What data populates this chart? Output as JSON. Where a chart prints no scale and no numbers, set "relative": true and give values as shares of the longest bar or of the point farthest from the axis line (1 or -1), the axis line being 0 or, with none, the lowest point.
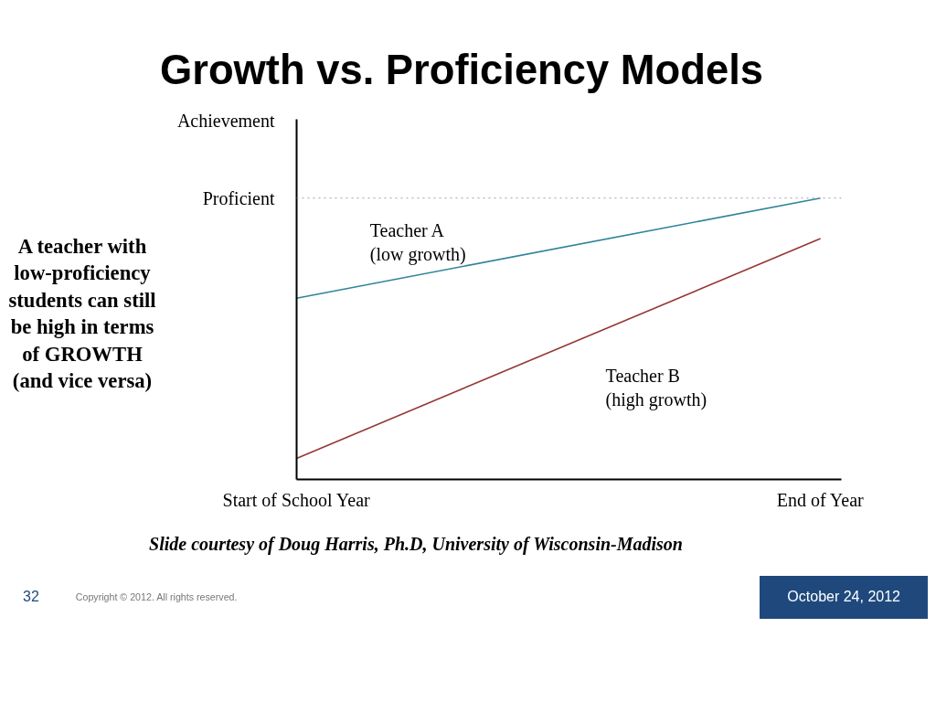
{
  "chart_data": {
    "type": "line",
    "title": "Growth vs. Proficiency Models",
    "ylabel": "Achievement",
    "relative": true,
    "categories": [
      "Start of School Year",
      "End of Year"
    ],
    "series": [
      {
        "name": "Teacher A\n(low growth)",
        "color": "#31849b",
        "values": [
          0.644,
          1.0
        ]
      },
      {
        "name": "Teacher B\n(high growth)",
        "color": "#953735",
        "values": [
          0.075,
          0.856
        ]
      }
    ],
    "ref_lines": [
      {
        "axis": "y",
        "value": 1.0,
        "label": "Proficient",
        "color": "#a0a0a0",
        "line_style": "dotted"
      }
    ],
    "annotations": [
      "A teacher with low-proficiency students can still be high in terms of GROWTH (and vice versa)",
      "Slide courtesy of Doug Harris, Ph.D, University of Wisconsin-Madison",
      "Copyright © 2012. All rights reserved.",
      "32",
      "October 24, 2012"
    ],
    "legend": false,
    "marker": "none",
    "line_style": "solid"
  }
}
